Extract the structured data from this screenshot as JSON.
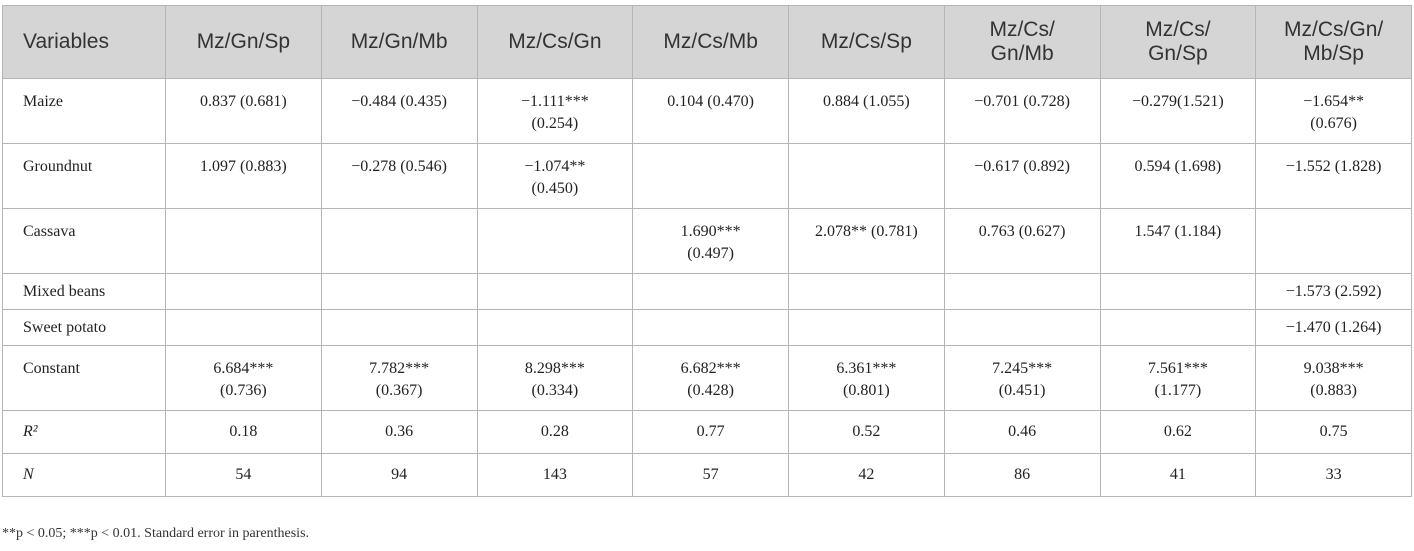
{
  "table": {
    "columns": [
      "Variables",
      "Mz/Gn/Sp",
      "Mz/Gn/Mb",
      "Mz/Cs/Gn",
      "Mz/Cs/Mb",
      "Mz/Cs/Sp",
      "Mz/Cs/\nGn/Mb",
      "Mz/Cs/\nGn/Sp",
      "Mz/Cs/Gn/\nMb/Sp"
    ],
    "rows": [
      {
        "label": "Maize",
        "cells": [
          "0.837 (0.681)",
          "−0.484 (0.435)",
          "−1.111***\n(0.254)",
          "0.104 (0.470)",
          "0.884 (1.055)",
          "−0.701 (0.728)",
          "−0.279(1.521)",
          "−1.654**\n(0.676)"
        ]
      },
      {
        "label": "Groundnut",
        "cells": [
          "1.097 (0.883)",
          "−0.278 (0.546)",
          "−1.074**\n(0.450)",
          null,
          null,
          "−0.617 (0.892)",
          "0.594 (1.698)",
          "−1.552 (1.828)"
        ]
      },
      {
        "label": "Cassava",
        "cells": [
          null,
          null,
          null,
          "1.690***\n(0.497)",
          "2.078** (0.781)",
          "0.763 (0.627)",
          "1.547 (1.184)",
          null
        ]
      },
      {
        "label": "Mixed beans",
        "cells": [
          null,
          null,
          null,
          null,
          null,
          null,
          null,
          "−1.573 (2.592)"
        ]
      },
      {
        "label": "Sweet potato",
        "cells": [
          null,
          null,
          null,
          null,
          null,
          null,
          null,
          "−1.470 (1.264)"
        ]
      },
      {
        "label": "Constant",
        "cells": [
          "6.684***\n(0.736)",
          "7.782***\n(0.367)",
          "8.298***\n(0.334)",
          "6.682***\n(0.428)",
          "6.361***\n(0.801)",
          "7.245***\n(0.451)",
          "7.561***\n(1.177)",
          "9.038***\n(0.883)"
        ]
      },
      {
        "label": "R²",
        "italic": true,
        "cells": [
          "0.18",
          "0.36",
          "0.28",
          "0.77",
          "0.52",
          "0.46",
          "0.62",
          "0.75"
        ]
      },
      {
        "label": "N",
        "italic": true,
        "cells": [
          "54",
          "94",
          "143",
          "57",
          "42",
          "86",
          "41",
          "33"
        ]
      }
    ],
    "footnote": "**p < 0.05; ***p < 0.01. Standard error in parenthesis."
  }
}
